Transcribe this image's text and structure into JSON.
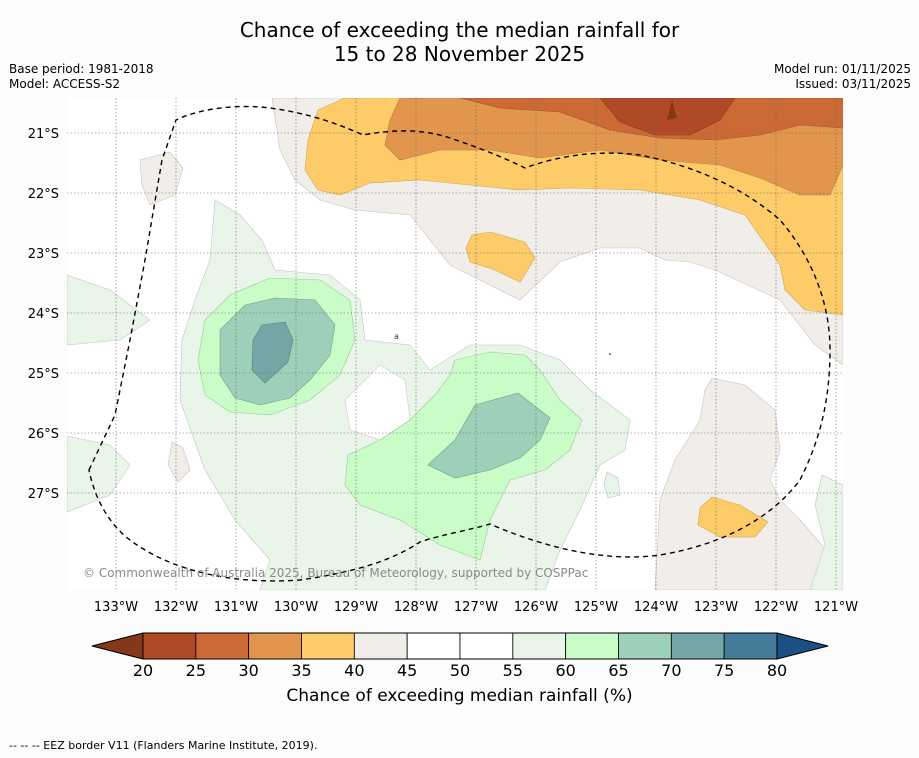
{
  "title_line1": "Chance of exceeding the median rainfall for",
  "title_line2": "15 to 28 November 2025",
  "base_period": "Base period: 1981-2018",
  "model": "Model: ACCESS-S2",
  "model_run": "Model run: 01/11/2025",
  "issued": "Issued: 03/11/2025",
  "lat_labels": [
    "21°S",
    "22°S",
    "23°S",
    "24°S",
    "25°S",
    "26°S",
    "27°S"
  ],
  "lon_labels": [
    "133°W",
    "132°W",
    "131°W",
    "130°W",
    "129°W",
    "128°W",
    "127°W",
    "126°W",
    "125°W",
    "124°W",
    "123°W",
    "122°W",
    "121°W"
  ],
  "copyright": "© Commonwealth of Australia 2025, Bureau of Meteorology, supported by COSPPac",
  "colorbar": {
    "ticks": [
      "20",
      "25",
      "30",
      "35",
      "40",
      "45",
      "50",
      "55",
      "60",
      "65",
      "70",
      "75",
      "80"
    ],
    "colors": [
      "#b04a26",
      "#cc6a36",
      "#e2954c",
      "#fdcc69",
      "#f1ede8",
      "#ffffff",
      "#ffffff",
      "#e9f5e8",
      "#cafcc8",
      "#9dd0b8",
      "#72a7a6",
      "#447b99"
    ],
    "under_color": "#86361a",
    "over_color": "#1b5084",
    "label": "Chance of exceeding median rainfall (%)"
  },
  "footnote": "--  --  -- EEZ border V11 (Flanders Marine Institute, 2019)."
}
